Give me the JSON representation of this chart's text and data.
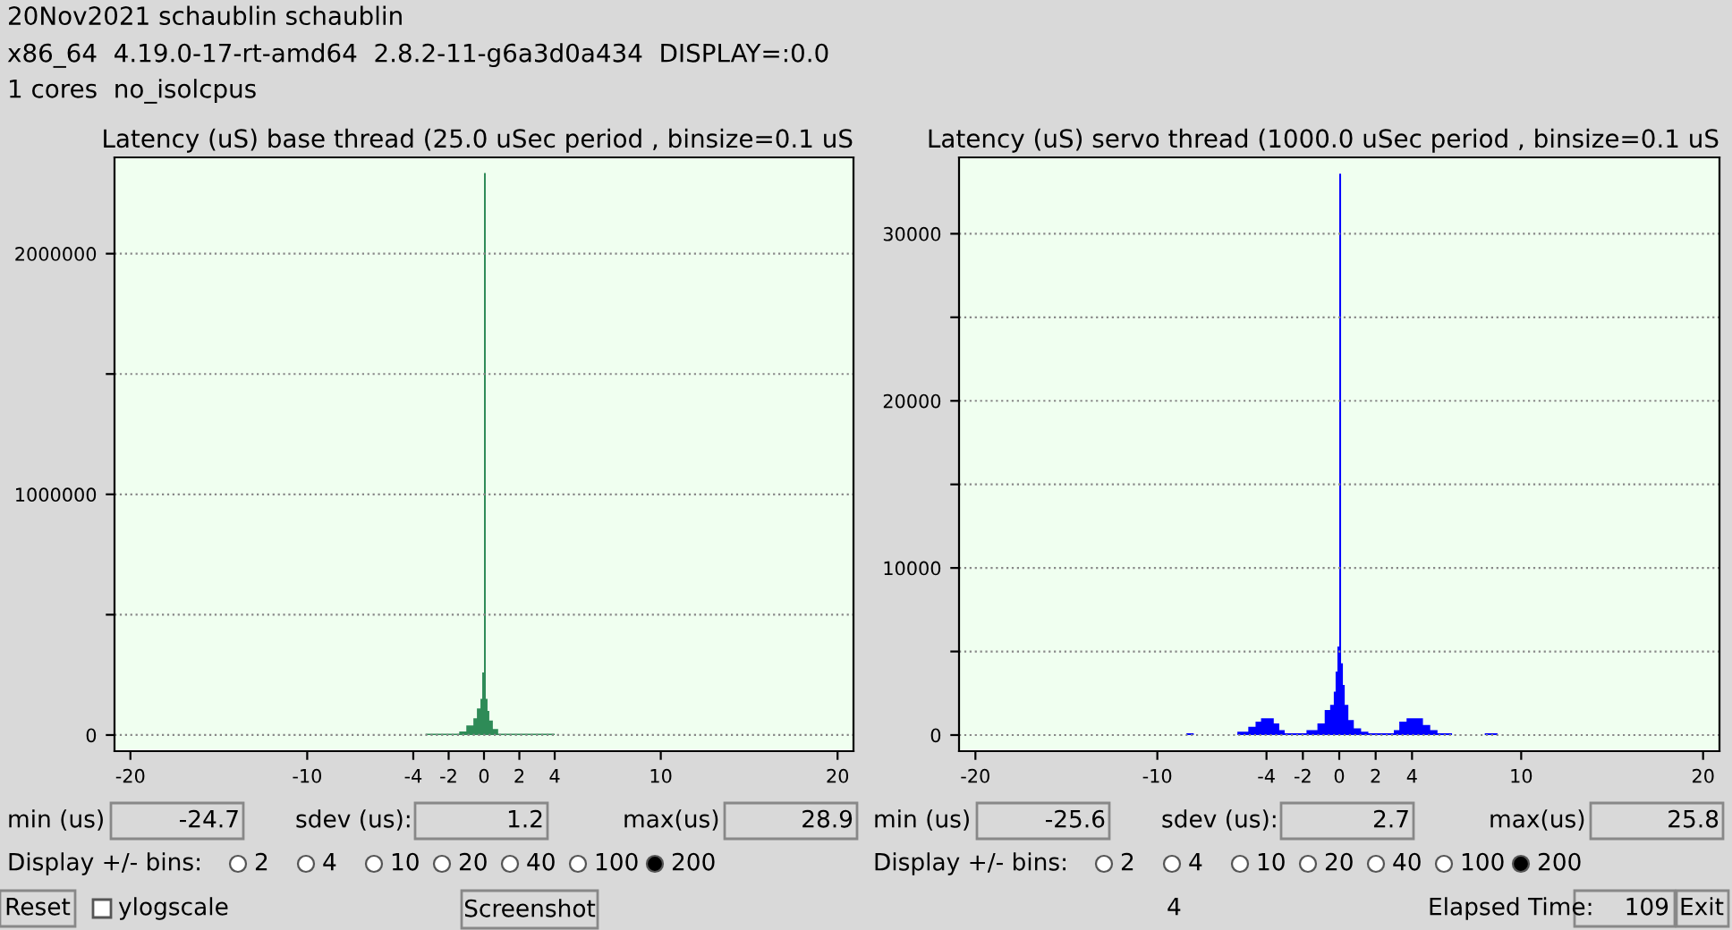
{
  "chart_data": [
    {
      "type": "histogram",
      "title": "Latency (uS) base thread (25.0 uSec period , binsize=0.1 uS",
      "color": "#2e8b57",
      "bins": [
        -20,
        -3.3,
        -1.4,
        -1.0,
        -0.6,
        -0.4,
        -0.2,
        -0.1,
        0,
        0.1,
        0.2,
        0.3,
        0.5,
        0.8,
        4.0,
        20
      ],
      "values": [
        0,
        5000,
        15000,
        40000,
        70000,
        110000,
        150000,
        260000,
        2335000,
        150000,
        100000,
        60000,
        25000,
        5000,
        0
      ],
      "xlim": [
        -20.9,
        20.9
      ],
      "xticks": [
        -20,
        -10,
        -4,
        -2,
        0,
        2,
        4,
        10,
        20
      ],
      "ylim": [
        -67000,
        2400000
      ],
      "yticks": [
        0,
        {
          "value": 500000,
          "label": null
        },
        1000000,
        {
          "value": 1500000,
          "label": null
        },
        2000000
      ],
      "grid": "y",
      "annotations": [
        "min (us)",
        "-24.7",
        "sdev (us):",
        "1.2",
        "max(us)",
        "28.9",
        "Display +/- bins:",
        "2",
        "4",
        "10",
        "20",
        "40",
        "100",
        "200"
      ]
    },
    {
      "type": "histogram",
      "title": "Latency (uS) servo thread (1000.0 uSec period , binsize=0.1 uS",
      "color": "#0000ff",
      "bins": [
        -20,
        -8.4,
        -8.0,
        -5.6,
        -5.0,
        -4.6,
        -4.3,
        -3.6,
        -3.3,
        -3.0,
        -1.8,
        -1.2,
        -0.8,
        -0.5,
        -0.3,
        -0.2,
        -0.1,
        0,
        0.1,
        0.2,
        0.3,
        0.5,
        0.8,
        1.2,
        1.6,
        3.0,
        3.3,
        3.7,
        4.6,
        5.0,
        5.4,
        6.2,
        8.0,
        8.7,
        20
      ],
      "values": [
        0,
        100,
        0,
        200,
        500,
        800,
        1000,
        700,
        300,
        100,
        300,
        700,
        1500,
        1800,
        2600,
        3800,
        5300,
        33600,
        4300,
        3000,
        1800,
        900,
        400,
        200,
        100,
        300,
        800,
        1000,
        600,
        300,
        100,
        0,
        100,
        0
      ],
      "xlim": [
        -20.9,
        20.9
      ],
      "xticks": [
        -20,
        -10,
        -4,
        -2,
        0,
        2,
        4,
        10,
        20
      ],
      "ylim": [
        -964,
        34570
      ],
      "yticks": [
        0,
        {
          "value": 5000,
          "label": null
        },
        10000,
        {
          "value": 15000,
          "label": null
        },
        20000,
        {
          "value": 25000,
          "label": null
        },
        30000
      ],
      "grid": "y",
      "annotations": [
        "min (us)",
        "-25.6",
        "sdev (us):",
        "2.7",
        "max(us)",
        "25.8",
        "Display +/- bins:",
        "2",
        "4",
        "10",
        "20",
        "40",
        "100",
        "200"
      ]
    },
    {
      "type": "other",
      "annotations": [
        "20Nov2021 schaublin schaublin",
        "x86_64  4.19.0-17-rt-amd64  2.8.2-11-g6a3d0a434  DISPLAY=:0.0",
        "1 cores  no_isolcpus",
        "Reset",
        "ylogscale",
        "Screenshot",
        "4",
        "Elapsed Time:",
        "109",
        "Exit"
      ]
    }
  ]
}
